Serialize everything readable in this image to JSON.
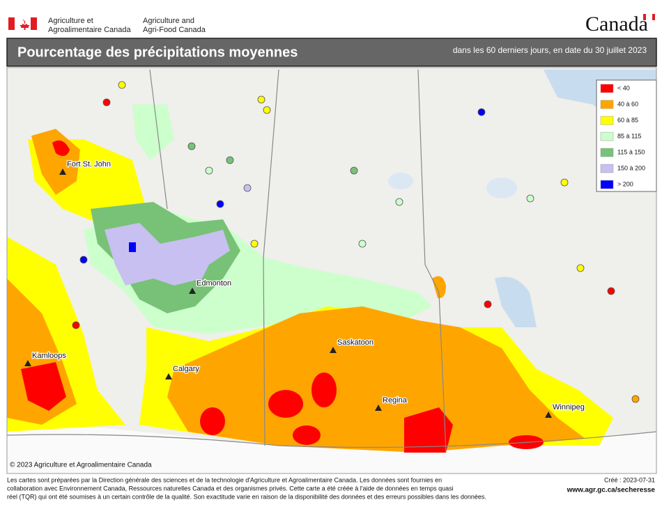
{
  "header": {
    "dept_fr": [
      "Agriculture et",
      "Agroalimentaire Canada"
    ],
    "dept_en": [
      "Agriculture and",
      "Agri-Food Canada"
    ],
    "wordmark": "Canada"
  },
  "title": "Pourcentage des précipitations moyennes",
  "subtitle": "dans les 60 derniers jours, en date du 30 juillet 2023",
  "legend": [
    {
      "label": "< 40",
      "color": "#ff0000"
    },
    {
      "label": "40 à 60",
      "color": "#ffa500"
    },
    {
      "label": "60 à 85",
      "color": "#ffff00"
    },
    {
      "label": "85 à 115",
      "color": "#ccffcc"
    },
    {
      "label": "115 à 150",
      "color": "#77c277"
    },
    {
      "label": "150 à 200",
      "color": "#c8c0f0"
    },
    {
      "label": "> 200",
      "color": "#0000ff"
    }
  ],
  "cities": [
    "Fort St. John",
    "Edmonton",
    "Kamloops",
    "Calgary",
    "Saskatoon",
    "Regina",
    "Winnipeg"
  ],
  "copyright": "© 2023 Agriculture et Agroalimentaire Canada",
  "footer": {
    "notes": [
      "Les cartes sont préparées par la Direction générale des sciences et de la technologie d'Agriculture et Agroalimentaire Canada. Les données sont fournies en",
      "collaboration avec Environnement Canada, Ressources naturelles Canada et des organismes privés. Cette carte a été créée à l'aide de données en temps quasi",
      "réel (TQR) qui ont été soumises à un certain contrôle de la qualité. Son exactitude varie en raison de la disponibilité des données et des erreurs possibles dans les données."
    ],
    "created": "Créé : 2023-07-31",
    "url": "www.agr.gc.ca/secheresse"
  }
}
